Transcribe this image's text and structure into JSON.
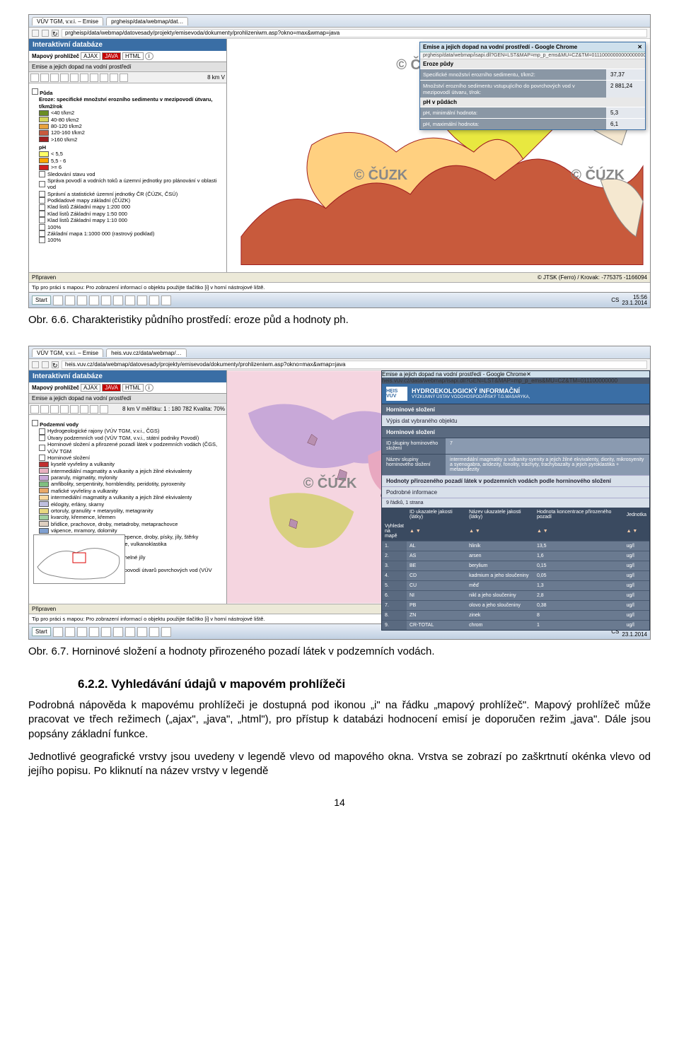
{
  "captions": {
    "fig66": "Obr. 6.6. Charakteristiky půdního prostředí: eroze půd a hodnoty ph.",
    "fig67": "Obr. 6.7. Horninové složení a hodnoty přirozeného pozadí látek v podzemních vodách."
  },
  "section": {
    "num": "6.2.2.",
    "title": "Vyhledávání údajů v mapovém prohlížeči"
  },
  "body": {
    "p1": "Podrobná nápověda k mapovému prohlížeči je dostupná pod ikonou „i\" na řádku „mapový prohlížeč\". Mapový prohlížeč může pracovat ve třech režimech („ajax\", „java\", „html\"), pro přístup k databázi hodnocení emisí je doporučen režim „java\". Dále jsou popsány základní funkce.",
    "p2": "Jednotlivé geografické vrstvy jsou uvedeny v legendě vlevo od mapového okna. Vrstva se zobrazí po zaškrtnutí okénka vlevo od jejího popisu. Po kliknutí na název vrstvy v legendě"
  },
  "pagenum": "14",
  "screenshot1": {
    "tabs": [
      "VÚV TGM, v.v.i. – Emise",
      "prgheisp/data/webmap/dat…"
    ],
    "url": "prgheisp/data/webmap/datovesady/projekty/emisevoda/dokumenty/prohlizeniwm.asp?okno=max&wmap=java",
    "panel_title": "Interaktivní databáze",
    "viewer_row": {
      "label": "Mapový prohlížeč",
      "tabs": [
        "AJAX",
        "JAVA",
        "HTML"
      ],
      "active": 1,
      "info": "i"
    },
    "subtitle": "Emise a jejich dopad na vodní prostředí",
    "toolbar_right": "8 km    V",
    "legend": {
      "group1": "Půda",
      "eroze_title": "Eroze: specifické množství erozního sedimentu v mezipovodí útvaru, t/km2/rok",
      "eroze_items": [
        {
          "color": "#6b8e23",
          "label": "<40 t/km2"
        },
        {
          "color": "#d4d45a",
          "label": "40-80 t/km2"
        },
        {
          "color": "#e8a23c",
          "label": "80-120 t/km2"
        },
        {
          "color": "#c85a3c",
          "label": "120-160 t/km2"
        },
        {
          "color": "#a02020",
          "label": ">160 t/km2"
        }
      ],
      "ph_title": "pH",
      "ph_items": [
        {
          "color": "#ffff66",
          "label": "< 5,5"
        },
        {
          "color": "#ffa500",
          "label": "5,5 - 6"
        },
        {
          "color": "#d02020",
          "label": ">= 6"
        }
      ],
      "lines": [
        "Sledování stavu vod",
        "Správa povodí a vodních toků a územní jednotky pro plánování v oblasti vod",
        "Správní a statistické územní jednotky ČR (ČÚZK, ČSÚ)",
        "Podkladové mapy základní (ČÚZK)",
        "Klad listů Základní mapy 1:200 000",
        "Klad listů Základní mapy 1:50 000",
        "Klad listů Základní mapy 1:10 000",
        "100%",
        "Základní mapa 1:1000 000 (rastrový podklad)",
        "100%"
      ]
    },
    "watermarks": [
      "© ČÚZK",
      "© ČÚZK",
      "© ČÚZK"
    ],
    "popup": {
      "title": "Emise a jejich dopad na vodní prostředí - Google Chrome",
      "url": "prgheisp/data/webmap/isapi.dll?GEN=LST&MAP=mp_p_ems&MU=CZ&TM=011100000000000000000000000000000",
      "sec1": "Eroze půdy",
      "rows1": [
        {
          "label": "Specifické množství erozního sedimentu, t/km2:",
          "val": "37,37"
        },
        {
          "label": "Množství erozního sedimentu vstupujícího do povrchových vod v mezipovodí útvaru, t/rok:",
          "val": "2 881,24"
        }
      ],
      "sec2": "pH v půdách",
      "rows2": [
        {
          "label": "pH, minimální hodnota:",
          "val": "5,3"
        },
        {
          "label": "pH, maximální hodnota:",
          "val": "6,1"
        }
      ]
    },
    "status_left": "Připraven",
    "status_right": "© JTSK (Ferro) / Krovak: -775375 -1166094",
    "tip": "Tip pro práci s mapou: Pro zobrazení informací o objektu použijte tlačítko [i] v horní nástrojové liště.",
    "taskbar": {
      "start": "Start",
      "lang": "CS",
      "time": "15:56",
      "date": "23.1.2014"
    },
    "map_colors": {
      "bg": "#ffffff",
      "border": "#a02020",
      "region_a": "#ffd080",
      "region_b": "#e8e840",
      "region_c": "#ffffff"
    }
  },
  "screenshot2": {
    "tabs": [
      "VÚV TGM, v.v.i. – Emise",
      "heis.vuv.cz/data/webmap/…"
    ],
    "url": "heis.vuv.cz/data/webmap/datovesady/projekty/emisevoda/dokumenty/prohlizeniwm.asp?okno=max&wmap=java",
    "panel_title": "Interaktivní databáze",
    "viewer_row": {
      "label": "Mapový prohlížeč",
      "tabs": [
        "AJAX",
        "JAVA",
        "HTML"
      ],
      "active": 1,
      "info": "i"
    },
    "subtitle": "Emise a jejich dopad na vodní prostředí",
    "toolbar_right": "8 km   V měřítku: 1 : 180 782   Kvalita: 70%",
    "legend": {
      "group1": "Podzemní vody",
      "lines_top": [
        "Hydrogeologické rajony (VÚV TGM, v.v.i., ČGS)",
        "Útvary podzemních vod (VÚV TGM, v.v.i., státní podniky Povodí)",
        "Horninové složení a přirozené pozadí látek v podzemních vodách (ČGS, VÚV TGM",
        "Horninové složení"
      ],
      "rock_items": [
        {
          "color": "#c03030",
          "label": "kyselé vyvřeliny a vulkanity"
        },
        {
          "color": "#e8b0c0",
          "label": "intermediální magmatity a vulkanity a jejich žilné ekvivalenty"
        },
        {
          "color": "#c8a8d8",
          "label": "pararuly, migmatity, mylonity"
        },
        {
          "color": "#80c080",
          "label": "amfibolity, serpentinity, hornblendity, peridotity, pyroxenity"
        },
        {
          "color": "#e8a868",
          "label": "mafické vyvřeliny a vulkanity"
        },
        {
          "color": "#f8d8a0",
          "label": "intermediální magmatity a vulkanity a jejich žilné ekvivalenty"
        },
        {
          "color": "#c0c0e0",
          "label": "eklogity, erlány, skarny"
        },
        {
          "color": "#e8d880",
          "label": "ortoruly, granulity + metaryolity, metagranity"
        },
        {
          "color": "#a0d0a0",
          "label": "kvarcity, křemence, křemen"
        },
        {
          "color": "#e0d0c0",
          "label": "břidlice, prachovce, droby, metadroby, metaprachovce"
        },
        {
          "color": "#80a0d0",
          "label": "vápence, mramory, dolomity"
        },
        {
          "color": "#f0c890",
          "label": "pískovce, jílovce, prachovce, slepence, droby, písky, jíly, štěrky"
        },
        {
          "color": "#c8a880",
          "label": "štěrky, písky, slepence, pískovce, vulkanoklastika"
        },
        {
          "color": "#e0e068",
          "label": "slíny, slínovce, vápnité jílovce"
        },
        {
          "color": "#f8e8a0",
          "label": "slínovce, jíly, vápnité jíly, uhlí, uhelné jíly"
        }
      ],
      "lines_bot": [
        "Základní odtok",
        "Podíl základního odtoku v (mezi)povodí útvarů povrchových vod (VÚV TGM, v.v.i"
      ]
    },
    "watermarks": [
      "© ČÚZK",
      "© ČÚZK"
    ],
    "heis": {
      "popup_title": "Emise a jejich dopad na vodní prostředí - Google Chrome",
      "url": "heis.vuv.cz/data/webmap/isapi.dll?GEN=LST&MAP=mp_p_ems&MU=CZ&TM=011100000000",
      "logo": "HEIS VÚV",
      "h1": "HYDROEKOLOGICKÝ INFORMAČNÍ",
      "h2": "VÝZKUMNÝ ÚSTAV VODOHOSPODÁŘSKÝ T.G.MASARYKA,",
      "sec1": "Horninové složení",
      "sub1": "Výpis dat vybraného objektu",
      "sec2": "Horninové složení",
      "kv": [
        {
          "k": "ID skupiny horninového složení",
          "v": "7"
        },
        {
          "k": "Název skupiny horninového složení",
          "v": "intermediální magmatity a vulkanity-syenity a jejich žilné ekvivalenty, diority, mikrosyenity a syenogabra, andezity, fonolity, trachyty, trachybazalty a jejich pyroklastika + metaandezity"
        }
      ],
      "sec3": "Hodnoty přirozeného pozadí látek v podzemních vodách podle horninového složení",
      "sub3": "Podrobné informace",
      "note": "9 řádků, 1 strana",
      "th": [
        "",
        "ID ukazatele jakosti (látky)",
        "Název ukazatele jakosti (látky)",
        "Hodnota koncentrace přirozeného pozadí",
        "Jednotka"
      ],
      "th2": "Vyhledat na mapě",
      "rows": [
        [
          "1.",
          "AL",
          "hliník",
          "13,5",
          "ug/l"
        ],
        [
          "2.",
          "AS",
          "arsen",
          "1,6",
          "ug/l"
        ],
        [
          "3.",
          "BE",
          "berylium",
          "0,15",
          "ug/l"
        ],
        [
          "4.",
          "CD",
          "kadmium a jeho sloučeniny",
          "0,05",
          "ug/l"
        ],
        [
          "5.",
          "CU",
          "měď",
          "1,3",
          "ug/l"
        ],
        [
          "6.",
          "NI",
          "nikl a jeho sloučeniny",
          "2,8",
          "ug/l"
        ],
        [
          "7.",
          "PB",
          "olovo a jeho sloučeniny",
          "0,38",
          "ug/l"
        ],
        [
          "8.",
          "ZN",
          "zinek",
          "8",
          "ug/l"
        ],
        [
          "9.",
          "CR-TOTAL",
          "chrom",
          "1",
          "ug/l"
        ]
      ]
    },
    "status_left": "Připraven",
    "tip": "Tip pro práci s mapou: Pro zobrazení informací o objektu použijte tlačítko [i] v horní nástrojové liště.",
    "taskbar": {
      "start": "Start",
      "lang": "CS",
      "time": "19:52",
      "date": "23.1.2014"
    },
    "map_colors": {
      "bg": "#f5d5e0",
      "a": "#e8a8c0",
      "b": "#c8a8d8",
      "c": "#d8d080",
      "d": "#905030"
    }
  }
}
